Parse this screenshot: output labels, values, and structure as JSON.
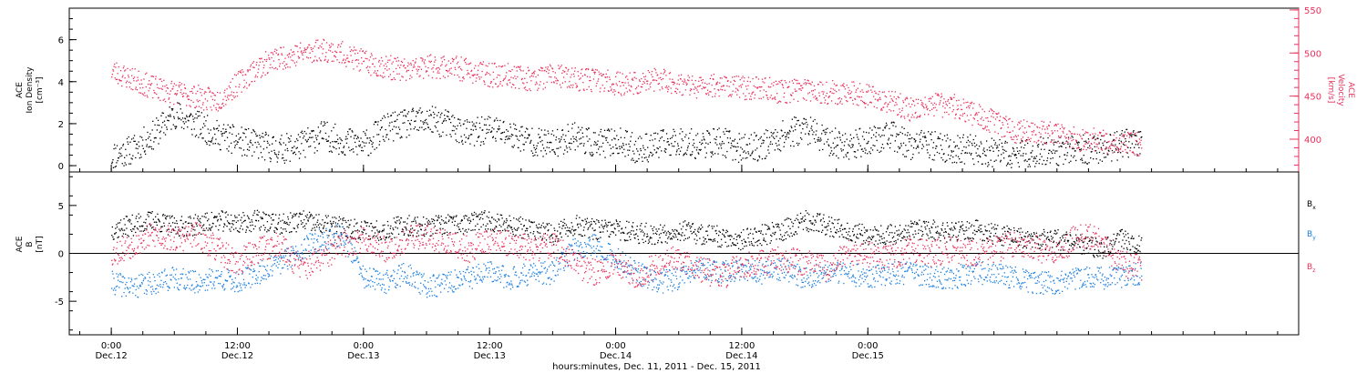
{
  "chart_data": [
    {
      "type": "scatter",
      "panel": "top",
      "ylabel_left": [
        "ACE",
        "Ion Density",
        "[cm⁻³]"
      ],
      "ylabel_right": [
        "ACE",
        "Velocity",
        "[km/s]"
      ],
      "ylim_left": [
        -0.3,
        7.5
      ],
      "ylim_right": [
        362,
        552
      ],
      "yticks_left": [
        0,
        2,
        4,
        6
      ],
      "yticks_right": [
        400,
        450,
        500,
        550
      ],
      "colors": {
        "density": "#000000",
        "velocity": "#e8305a"
      },
      "series": [
        {
          "name": "",
          "axis": "left",
          "x_hours": [
            0.0,
            2,
            4,
            6,
            8,
            10,
            12,
            14,
            16,
            18,
            20,
            22,
            24,
            26,
            28,
            30,
            32,
            34,
            36,
            38,
            40,
            42,
            44,
            46,
            48,
            50,
            52,
            54,
            56,
            58,
            60,
            62,
            64,
            66,
            68,
            70,
            72,
            74,
            76,
            78,
            80,
            82,
            84,
            86,
            88,
            90,
            92,
            94,
            96,
            98
          ],
          "values": [
            0.5,
            0.8,
            1.5,
            2.5,
            2.0,
            1.5,
            1.2,
            1.0,
            0.8,
            1.0,
            1.5,
            1.2,
            1.0,
            1.8,
            2.0,
            2.2,
            2.0,
            1.5,
            1.8,
            1.5,
            1.2,
            1.0,
            1.5,
            1.0,
            1.2,
            0.8,
            1.0,
            1.2,
            1.0,
            1.2,
            0.8,
            1.0,
            1.5,
            1.8,
            1.2,
            1.0,
            1.2,
            1.5,
            1.0,
            1.0,
            0.8,
            0.8,
            0.6,
            0.5,
            0.7,
            0.7,
            0.8,
            0.8,
            1.0,
            1.2
          ]
        },
        {
          "name": "",
          "axis": "right",
          "x_hours": [
            0.0,
            2,
            4,
            6,
            8,
            10,
            12,
            14,
            16,
            18,
            20,
            22,
            24,
            26,
            28,
            30,
            32,
            34,
            36,
            38,
            40,
            42,
            44,
            46,
            48,
            50,
            52,
            54,
            56,
            58,
            60,
            62,
            64,
            66,
            68,
            70,
            72,
            74,
            76,
            78,
            80,
            82,
            84,
            86,
            88,
            90,
            92,
            94,
            96,
            98
          ],
          "values": [
            480,
            470,
            460,
            455,
            450,
            445,
            465,
            485,
            495,
            500,
            505,
            500,
            490,
            485,
            480,
            485,
            485,
            480,
            475,
            475,
            470,
            475,
            470,
            470,
            465,
            465,
            470,
            465,
            460,
            465,
            460,
            460,
            455,
            460,
            455,
            455,
            450,
            445,
            435,
            440,
            440,
            430,
            420,
            410,
            410,
            405,
            400,
            400,
            395,
            395
          ]
        }
      ]
    },
    {
      "type": "scatter",
      "panel": "bottom",
      "ylabel": [
        "ACE",
        "B",
        "[nT]"
      ],
      "ylim": [
        -8.5,
        8.5
      ],
      "yticks": [
        -5,
        0,
        5
      ],
      "legend": [
        {
          "label": "B",
          "sub": "x",
          "color": "#000000"
        },
        {
          "label": "B",
          "sub": "y",
          "color": "#1a7fe0"
        },
        {
          "label": "B",
          "sub": "z",
          "color": "#e8305a"
        }
      ],
      "series": [
        {
          "name": "Bx",
          "x_hours": [
            0.0,
            2,
            4,
            6,
            8,
            10,
            12,
            14,
            16,
            18,
            20,
            22,
            24,
            26,
            28,
            30,
            32,
            34,
            36,
            38,
            40,
            42,
            44,
            46,
            48,
            50,
            52,
            54,
            56,
            58,
            60,
            62,
            64,
            66,
            68,
            70,
            72,
            74,
            76,
            78,
            80,
            82,
            84,
            86,
            88,
            90,
            92,
            94,
            96,
            98
          ],
          "values": [
            2.5,
            3.0,
            3.5,
            2.8,
            3.0,
            3.5,
            3.2,
            3.5,
            3.0,
            3.5,
            3.0,
            2.8,
            2.5,
            2.5,
            3.0,
            2.8,
            3.0,
            3.2,
            3.5,
            3.0,
            2.5,
            2.0,
            3.0,
            2.5,
            2.5,
            2.2,
            2.0,
            2.5,
            2.0,
            1.8,
            1.5,
            2.0,
            2.5,
            3.5,
            3.0,
            2.5,
            2.0,
            2.0,
            2.5,
            2.5,
            2.2,
            2.5,
            2.0,
            1.8,
            1.5,
            1.5,
            1.2,
            0.5,
            1.5,
            1.0
          ]
        },
        {
          "name": "By",
          "x_hours": [
            0.0,
            2,
            4,
            6,
            8,
            10,
            12,
            14,
            16,
            18,
            20,
            22,
            24,
            26,
            28,
            30,
            32,
            34,
            36,
            38,
            40,
            42,
            44,
            46,
            48,
            50,
            52,
            54,
            56,
            58,
            60,
            62,
            64,
            66,
            68,
            70,
            72,
            74,
            76,
            78,
            80,
            82,
            84,
            86,
            88,
            90,
            92,
            94,
            96,
            98
          ],
          "values": [
            -3.0,
            -3.5,
            -3.0,
            -2.5,
            -3.0,
            -2.5,
            -3.0,
            -2.0,
            -1.0,
            0.5,
            1.5,
            2.0,
            -2.5,
            -3.0,
            -2.0,
            -3.5,
            -3.0,
            -2.5,
            -2.0,
            -2.5,
            -2.0,
            -2.0,
            0.5,
            1.0,
            -0.5,
            -2.0,
            -3.0,
            -2.5,
            -1.5,
            -2.0,
            -1.5,
            -2.0,
            -1.5,
            -2.5,
            -2.0,
            -2.0,
            -2.5,
            -2.0,
            -2.0,
            -2.5,
            -2.5,
            -2.0,
            -2.0,
            -2.5,
            -3.0,
            -3.0,
            -2.5,
            -2.5,
            -2.5,
            -2.0
          ]
        },
        {
          "name": "Bz",
          "x_hours": [
            0.0,
            2,
            4,
            6,
            8,
            10,
            12,
            14,
            16,
            18,
            20,
            22,
            24,
            26,
            28,
            30,
            32,
            34,
            36,
            38,
            40,
            42,
            44,
            46,
            48,
            50,
            52,
            54,
            56,
            58,
            60,
            62,
            64,
            66,
            68,
            70,
            72,
            74,
            76,
            78,
            80,
            82,
            84,
            86,
            88,
            90,
            92,
            94,
            96,
            98
          ],
          "values": [
            0.0,
            1.0,
            2.0,
            1.5,
            2.0,
            0.5,
            -1.0,
            0.5,
            1.0,
            -1.5,
            -0.5,
            1.0,
            1.5,
            0.5,
            1.5,
            2.0,
            1.0,
            0.5,
            1.5,
            1.0,
            0.5,
            1.0,
            -1.0,
            -2.0,
            -1.0,
            -2.5,
            -1.0,
            -0.5,
            -1.5,
            -2.5,
            -1.0,
            -1.0,
            -0.5,
            -1.0,
            -1.5,
            0.0,
            0.0,
            -0.5,
            0.5,
            0.0,
            0.5,
            0.0,
            0.5,
            1.0,
            0.5,
            0.0,
            2.0,
            1.5,
            -1.0,
            -1.5
          ]
        }
      ]
    }
  ],
  "x_axis": {
    "range_hours": [
      -4.0,
      113.0
    ],
    "ticks": [
      {
        "hours": 0,
        "time": "0:00",
        "date": "Dec.12"
      },
      {
        "hours": 12,
        "time": "12:00",
        "date": "Dec.12"
      },
      {
        "hours": 24,
        "time": "0:00",
        "date": "Dec.13"
      },
      {
        "hours": 36,
        "time": "12:00",
        "date": "Dec.13"
      },
      {
        "hours": 48,
        "time": "0:00",
        "date": "Dec.14"
      },
      {
        "hours": 60,
        "time": "12:00",
        "date": "Dec.14"
      },
      {
        "hours": 72,
        "time": "0:00",
        "date": "Dec.15"
      }
    ],
    "label": "hours:minutes, Dec. 11, 2011 - Dec. 15, 2011"
  }
}
